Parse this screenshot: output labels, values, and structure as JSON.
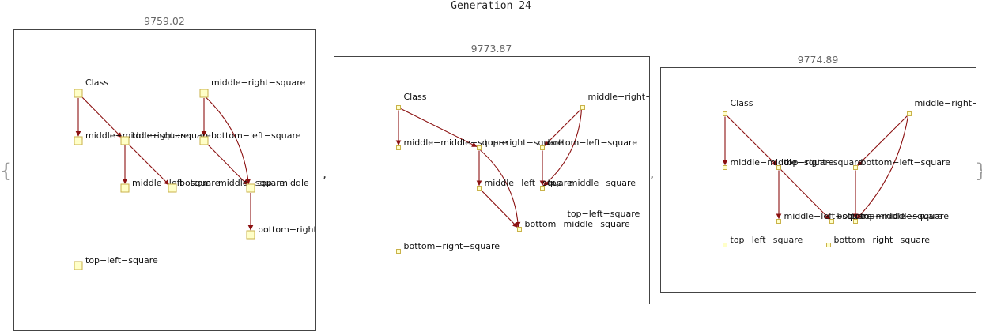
{
  "title": "Generation 24",
  "colors": {
    "edge": "#8b1010",
    "node_fill": "#ffffc8",
    "node_stroke": "#c9b24a"
  },
  "punctuation": {
    "open_brace": "{",
    "close_brace": "}",
    "separator": ","
  },
  "panels": [
    {
      "score": "9759.02",
      "nodes": [
        {
          "id": "Class",
          "label": "Class"
        },
        {
          "id": "middle-right-square",
          "label": "middle−right−square"
        },
        {
          "id": "middle-middle-square",
          "label": "middle−middle−square"
        },
        {
          "id": "top-right-square",
          "label": "top−right−square"
        },
        {
          "id": "bottom-left-square",
          "label": "bottom−left−square"
        },
        {
          "id": "middle-left-square",
          "label": "middle−left−square"
        },
        {
          "id": "bottom-middle-square",
          "label": "bottom−middle−square"
        },
        {
          "id": "top-middle-square",
          "label": "top−middle−square"
        },
        {
          "id": "bottom-right-square",
          "label": "bottom−right−square"
        },
        {
          "id": "top-left-square",
          "label": "top−left−square"
        }
      ]
    },
    {
      "score": "9773.87",
      "nodes": [
        {
          "id": "Class",
          "label": "Class"
        },
        {
          "id": "middle-right-square",
          "label": "middle−right−square"
        },
        {
          "id": "middle-middle-square",
          "label": "middle−middle−square"
        },
        {
          "id": "top-right-square",
          "label": "top−right−square"
        },
        {
          "id": "bottom-left-square",
          "label": "bottom−left−square"
        },
        {
          "id": "middle-left-square",
          "label": "middle−left−square"
        },
        {
          "id": "top-middle-square",
          "label": "top−middle−square"
        },
        {
          "id": "top-left-square",
          "label": "top−left−square"
        },
        {
          "id": "bottom-middle-square",
          "label": "bottom−middle−square"
        },
        {
          "id": "bottom-right-square",
          "label": "bottom−right−square"
        }
      ]
    },
    {
      "score": "9774.89",
      "nodes": [
        {
          "id": "Class",
          "label": "Class"
        },
        {
          "id": "middle-right-square",
          "label": "middle−right−square"
        },
        {
          "id": "middle-middle-square",
          "label": "middle−middle−square"
        },
        {
          "id": "top-right-square",
          "label": "top−right−square"
        },
        {
          "id": "bottom-left-square",
          "label": "bottom−left−square"
        },
        {
          "id": "middle-left-square",
          "label": "middle−left−square"
        },
        {
          "id": "bottom-middle-square",
          "label": "bottom−middle−square"
        },
        {
          "id": "top-middle-square",
          "label": "top−middle−square"
        },
        {
          "id": "top-left-square",
          "label": "top−left−square"
        },
        {
          "id": "bottom-right-square",
          "label": "bottom−right−square"
        }
      ]
    }
  ]
}
